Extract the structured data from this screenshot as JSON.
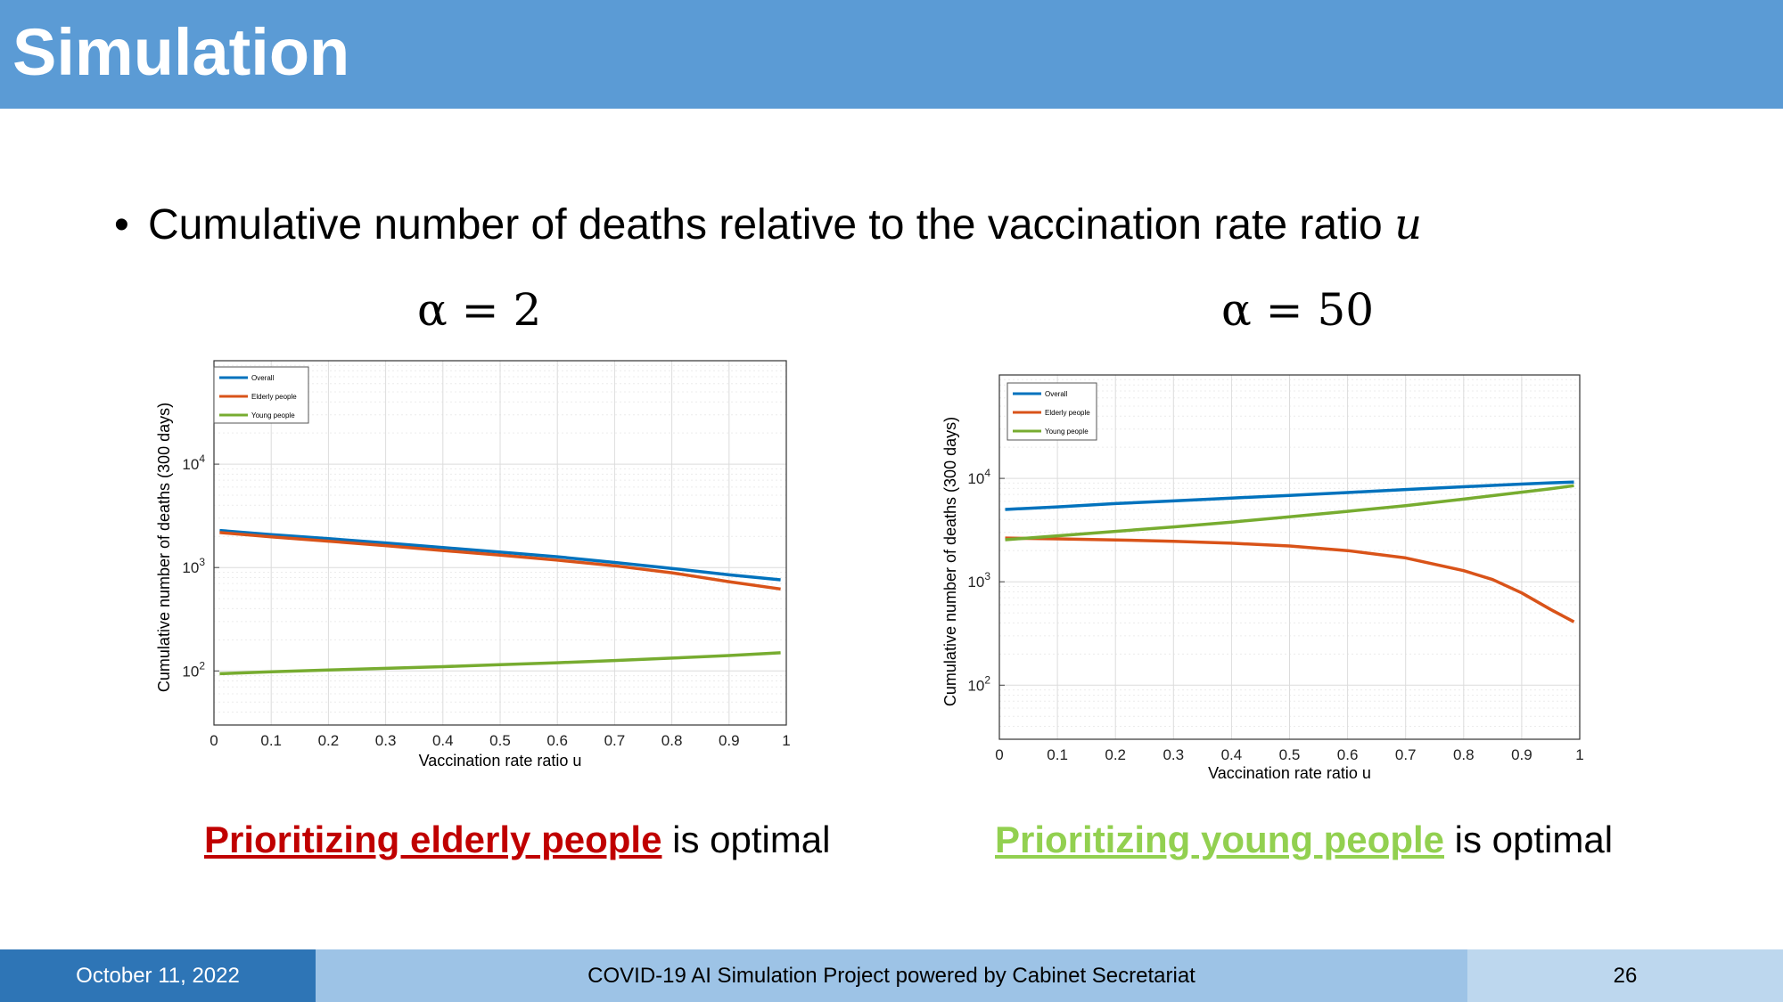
{
  "header": {
    "title": "Simulation"
  },
  "bullet": {
    "text": "Cumulative number of deaths relative to the vaccination rate ratio ",
    "var": "u"
  },
  "panels": [
    {
      "alpha_label": "α = 2",
      "conclusion_highlight": "Prioritizing elderly people",
      "conclusion_rest": " is optimal"
    },
    {
      "alpha_label": "α = 50",
      "conclusion_highlight": "Prioritizing young people",
      "conclusion_rest": " is optimal"
    }
  ],
  "colors": {
    "header_bg": "#5b9bd5",
    "overall": "#0072bd",
    "elderly": "#d95319",
    "young": "#77ac30",
    "conclusion_elderly": "#c00000",
    "conclusion_young": "#92d050"
  },
  "chart_data": [
    {
      "type": "line",
      "xlabel": "Vaccination rate ratio u",
      "ylabel": "Cumulative number of deaths (300 days)",
      "xlim": [
        0,
        1
      ],
      "ylim": [
        30,
        100000
      ],
      "yscale": "log",
      "x_ticks": [
        "0",
        "0.1",
        "0.2",
        "0.3",
        "0.4",
        "0.5",
        "0.6",
        "0.7",
        "0.8",
        "0.9",
        "1"
      ],
      "y_ticks": [
        {
          "base": "10",
          "exp": "2"
        },
        {
          "base": "10",
          "exp": "3"
        },
        {
          "base": "10",
          "exp": "4"
        }
      ],
      "grid": true,
      "legend_position": "top-left",
      "x": [
        0.01,
        0.1,
        0.2,
        0.3,
        0.4,
        0.5,
        0.6,
        0.7,
        0.8,
        0.9,
        0.99
      ],
      "series": [
        {
          "name": "Overall",
          "color": "#0072bd",
          "values": [
            2280,
            2080,
            1900,
            1730,
            1560,
            1410,
            1270,
            1120,
            980,
            850,
            760
          ]
        },
        {
          "name": "Elderly people",
          "color": "#d95319",
          "values": [
            2180,
            1980,
            1800,
            1630,
            1460,
            1320,
            1180,
            1040,
            890,
            730,
            620
          ]
        },
        {
          "name": "Young people",
          "color": "#77ac30",
          "values": [
            94,
            98,
            102,
            106,
            110,
            115,
            120,
            126,
            133,
            141,
            150
          ]
        }
      ]
    },
    {
      "type": "line",
      "xlabel": "Vaccination rate ratio u",
      "ylabel": "Cumulative number of deaths (300 days)",
      "xlim": [
        0,
        1
      ],
      "ylim": [
        30,
        100000
      ],
      "yscale": "log",
      "x_ticks": [
        "0",
        "0.1",
        "0.2",
        "0.3",
        "0.4",
        "0.5",
        "0.6",
        "0.7",
        "0.8",
        "0.9",
        "1"
      ],
      "y_ticks": [
        {
          "base": "10",
          "exp": "2"
        },
        {
          "base": "10",
          "exp": "3"
        },
        {
          "base": "10",
          "exp": "4"
        }
      ],
      "grid": true,
      "legend_position": "top-left",
      "x": [
        0.01,
        0.1,
        0.2,
        0.3,
        0.4,
        0.5,
        0.6,
        0.7,
        0.8,
        0.85,
        0.9,
        0.95,
        0.99
      ],
      "series": [
        {
          "name": "Overall",
          "color": "#0072bd",
          "values": [
            5000,
            5300,
            5700,
            6050,
            6450,
            6850,
            7300,
            7800,
            8300,
            8550,
            8800,
            9050,
            9200
          ]
        },
        {
          "name": "Elderly people",
          "color": "#d95319",
          "values": [
            2650,
            2600,
            2540,
            2460,
            2360,
            2220,
            2000,
            1700,
            1280,
            1050,
            780,
            540,
            410
          ]
        },
        {
          "name": "Young people",
          "color": "#77ac30",
          "values": [
            2550,
            2780,
            3070,
            3390,
            3780,
            4250,
            4800,
            5450,
            6300,
            6800,
            7350,
            7950,
            8500
          ]
        }
      ]
    }
  ],
  "footer": {
    "date": "October 11, 2022",
    "project": "COVID-19 AI Simulation Project powered by Cabinet Secretariat",
    "page": "26"
  }
}
